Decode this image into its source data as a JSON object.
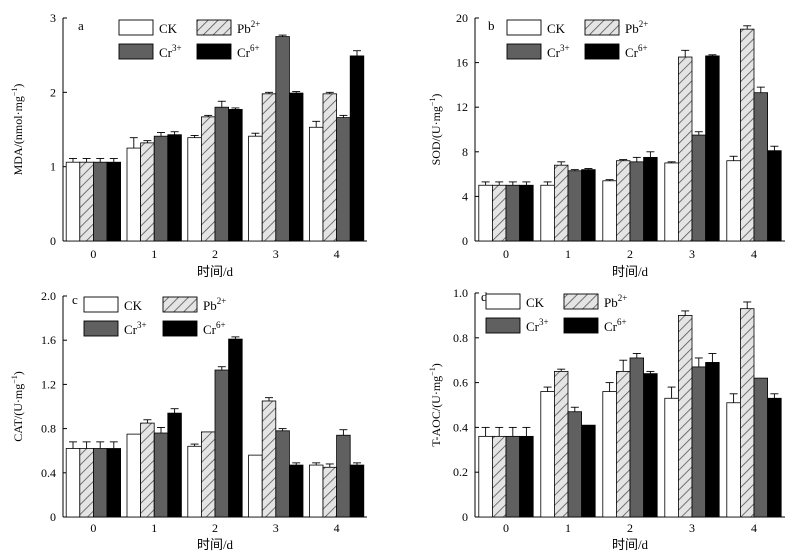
{
  "figure": {
    "legend": [
      {
        "key": "CK",
        "text": "CK",
        "sup": "",
        "pattern": "white"
      },
      {
        "key": "Pb",
        "text": "Pb",
        "sup": "2+",
        "pattern": "hatch"
      },
      {
        "key": "Cr3",
        "text": "Cr",
        "sup": "3+",
        "pattern": "gray"
      },
      {
        "key": "Cr6",
        "text": "Cr",
        "sup": "6+",
        "pattern": "black"
      }
    ],
    "colors": {
      "white": "#ffffff",
      "gray": "#606060",
      "black": "#000000",
      "hatch_bg": "#e4e4e4",
      "hatch_line": "#555555",
      "stroke": "#000000"
    }
  },
  "chart_data": [
    {
      "panel": "a",
      "type": "bar",
      "title": "",
      "xlabel": "时间/d",
      "ylabel_main": "MDA/(nmol·mg",
      "ylabel_sup": "−1",
      "ylabel_end": ")",
      "categories": [
        "0",
        "1",
        "2",
        "3",
        "4"
      ],
      "ylim": [
        0,
        3
      ],
      "yticks": [
        "0",
        "1",
        "2",
        "3"
      ],
      "series": [
        {
          "name": "CK",
          "values": [
            1.06,
            1.25,
            1.39,
            1.41,
            1.53
          ],
          "errors": [
            0.05,
            0.14,
            0.03,
            0.04,
            0.08
          ]
        },
        {
          "name": "Pb2+",
          "values": [
            1.06,
            1.32,
            1.67,
            1.98,
            1.98
          ],
          "errors": [
            0.05,
            0.03,
            0.02,
            0.02,
            0.02
          ]
        },
        {
          "name": "Cr3+",
          "values": [
            1.06,
            1.41,
            1.8,
            2.75,
            1.66
          ],
          "errors": [
            0.05,
            0.05,
            0.08,
            0.02,
            0.03
          ]
        },
        {
          "name": "Cr6+",
          "values": [
            1.06,
            1.43,
            1.77,
            1.99,
            2.49
          ],
          "errors": [
            0.05,
            0.04,
            0.02,
            0.02,
            0.07
          ]
        }
      ]
    },
    {
      "panel": "b",
      "type": "bar",
      "title": "",
      "xlabel": "时间/d",
      "ylabel_main": "SOD/(U·mg",
      "ylabel_sup": "−1",
      "ylabel_end": ")",
      "categories": [
        "0",
        "1",
        "2",
        "3",
        "4"
      ],
      "ylim": [
        0,
        20
      ],
      "yticks": [
        "0",
        "4",
        "8",
        "12",
        "16",
        "20"
      ],
      "series": [
        {
          "name": "CK",
          "values": [
            5.0,
            5.0,
            5.4,
            7.0,
            7.2
          ],
          "errors": [
            0.3,
            0.3,
            0.1,
            0.1,
            0.4
          ]
        },
        {
          "name": "Pb2+",
          "values": [
            5.0,
            6.8,
            7.2,
            16.5,
            19.0
          ],
          "errors": [
            0.3,
            0.3,
            0.1,
            0.6,
            0.3
          ]
        },
        {
          "name": "Cr3+",
          "values": [
            5.0,
            6.3,
            7.1,
            9.5,
            13.3
          ],
          "errors": [
            0.3,
            0.1,
            0.4,
            0.3,
            0.5
          ]
        },
        {
          "name": "Cr6+",
          "values": [
            5.0,
            6.4,
            7.5,
            16.6,
            8.1
          ],
          "errors": [
            0.3,
            0.1,
            0.5,
            0.1,
            0.4
          ]
        }
      ]
    },
    {
      "panel": "c",
      "type": "bar",
      "title": "",
      "xlabel": "时间/d",
      "ylabel_main": "CAT/(U·mg",
      "ylabel_sup": "−1",
      "ylabel_end": ")",
      "categories": [
        "0",
        "1",
        "2",
        "3",
        "4"
      ],
      "ylim": [
        0,
        2.0
      ],
      "yticks": [
        "0",
        "0.4",
        "0.8",
        "1.2",
        "1.6",
        "2.0"
      ],
      "series": [
        {
          "name": "CK",
          "values": [
            0.62,
            0.75,
            0.64,
            0.56,
            0.47
          ],
          "errors": [
            0.06,
            0.0,
            0.02,
            0.0,
            0.02
          ]
        },
        {
          "name": "Pb2+",
          "values": [
            0.62,
            0.85,
            0.77,
            1.05,
            0.45
          ],
          "errors": [
            0.06,
            0.03,
            0.0,
            0.03,
            0.03
          ]
        },
        {
          "name": "Cr3+",
          "values": [
            0.62,
            0.76,
            1.33,
            0.78,
            0.74
          ],
          "errors": [
            0.06,
            0.05,
            0.03,
            0.02,
            0.05
          ]
        },
        {
          "name": "Cr6+",
          "values": [
            0.62,
            0.94,
            1.61,
            0.47,
            0.47
          ],
          "errors": [
            0.06,
            0.04,
            0.02,
            0.02,
            0.02
          ]
        }
      ]
    },
    {
      "panel": "d",
      "type": "bar",
      "title": "",
      "xlabel": "时间/d",
      "ylabel_main": "T-AOC/(U·mg",
      "ylabel_sup": "−1",
      "ylabel_end": ")",
      "categories": [
        "0",
        "1",
        "2",
        "3",
        "4"
      ],
      "ylim": [
        0,
        1.0
      ],
      "yticks": [
        "0",
        "0.2",
        "0.4",
        "0.6",
        "0.8",
        "1.0"
      ],
      "series": [
        {
          "name": "CK",
          "values": [
            0.36,
            0.56,
            0.56,
            0.53,
            0.51
          ],
          "errors": [
            0.04,
            0.02,
            0.04,
            0.05,
            0.04
          ]
        },
        {
          "name": "Pb2+",
          "values": [
            0.36,
            0.65,
            0.65,
            0.9,
            0.93
          ],
          "errors": [
            0.04,
            0.01,
            0.05,
            0.02,
            0.03
          ]
        },
        {
          "name": "Cr3+",
          "values": [
            0.36,
            0.47,
            0.71,
            0.67,
            0.62
          ],
          "errors": [
            0.04,
            0.02,
            0.02,
            0.04,
            0.0
          ]
        },
        {
          "name": "Cr6+",
          "values": [
            0.36,
            0.41,
            0.64,
            0.69,
            0.53
          ],
          "errors": [
            0.04,
            0.0,
            0.01,
            0.04,
            0.02
          ]
        }
      ]
    }
  ]
}
